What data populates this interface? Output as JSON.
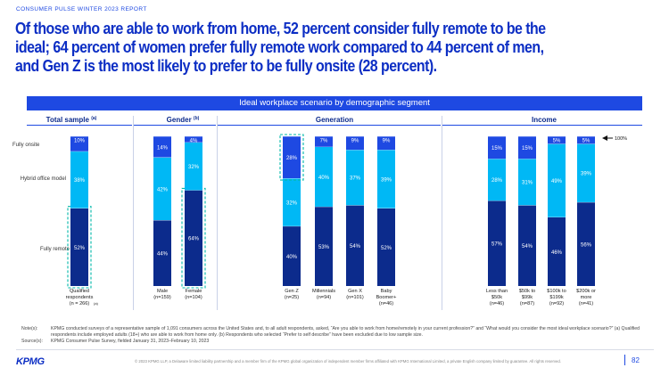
{
  "header": {
    "report_label": "CONSUMER PULSE WINTER 2023 REPORT",
    "headline": "Of those who are able to work from home, 52 percent consider fully remote to be the ideal; 64 percent of women prefer fully remote work compared to 44 percent of men, and Gen Z is the most likely to prefer to be fully onsite (28 percent)."
  },
  "chart_data": {
    "type": "bar",
    "stacked": true,
    "title": "Ideal workplace scenario by demographic segment",
    "row_labels": [
      "Fully onsite",
      "Hybrid office model",
      "Fully remote"
    ],
    "legend_note": "100%",
    "groups": [
      {
        "title": "Total sample",
        "sup": "(a)",
        "categories": [
          {
            "label": "Qualified respondents (n = 266)",
            "sup": "(a)",
            "onsite": 10,
            "hybrid": 38,
            "remote": 52,
            "highlight": "remote"
          }
        ]
      },
      {
        "title": "Gender",
        "sup": "(b)",
        "categories": [
          {
            "label": "Male (n=159)",
            "onsite": 14,
            "hybrid": 42,
            "remote": 44
          },
          {
            "label": "Female (n=104)",
            "onsite": 4,
            "hybrid": 32,
            "remote": 64,
            "highlight": "remote"
          }
        ]
      },
      {
        "title": "Generation",
        "sup": "",
        "categories": [
          {
            "label": "Gen Z (n=25)",
            "onsite": 28,
            "hybrid": 32,
            "remote": 40,
            "highlight": "onsite"
          },
          {
            "label": "Millennials (n=94)",
            "onsite": 7,
            "hybrid": 40,
            "remote": 53
          },
          {
            "label": "Gen X (n=101)",
            "onsite": 9,
            "hybrid": 37,
            "remote": 54
          },
          {
            "label": "Baby Boomer+ (n=46)",
            "onsite": 9,
            "hybrid": 39,
            "remote": 52
          }
        ]
      },
      {
        "title": "Income",
        "sup": "",
        "categories": [
          {
            "label": "Less than $50k (n=46)",
            "onsite": 15,
            "hybrid": 28,
            "remote": 57
          },
          {
            "label": "$50k to $99k (n=87)",
            "onsite": 15,
            "hybrid": 31,
            "remote": 54
          },
          {
            "label": "$100k to $199k (n=92)",
            "onsite": 5,
            "hybrid": 49,
            "remote": 46
          },
          {
            "label": "$200k or more (n=41)",
            "onsite": 5,
            "hybrid": 39,
            "remote": 56
          }
        ]
      }
    ],
    "ylim": [
      0,
      100
    ],
    "colors": {
      "onsite": "#1e49e2",
      "hybrid": "#00b8f5",
      "remote": "#0c2b8c",
      "highlight": "#00b8a9"
    }
  },
  "notes": {
    "notes_label": "Note(s):",
    "notes_text": "KPMG conducted surveys of a representative sample of 1,091 consumers across the United States and, to all adult respondents, asked, “Are you able to work from home/remotely in your current profession?” and “What would you consider the most ideal workplace scenario?” (a) Qualified respondents include employed adults (18+) who are able to work from home only. (b) Respondents who selected “Prefer to self describe” have been excluded due to low sample size.",
    "source_label": "Source(s):",
    "source_text": "KPMG Consumer Pulse Survey, fielded January 31, 2023–February 10, 2023"
  },
  "footer": {
    "logo": "KPMG",
    "copyright": "© 2023 KPMG LLP, a Delaware limited liability partnership and a member firm of the KPMG global organization of independent member firms affiliated with KPMG International Limited, a private English company limited by guarantee. All rights reserved.",
    "page_number": "82"
  }
}
